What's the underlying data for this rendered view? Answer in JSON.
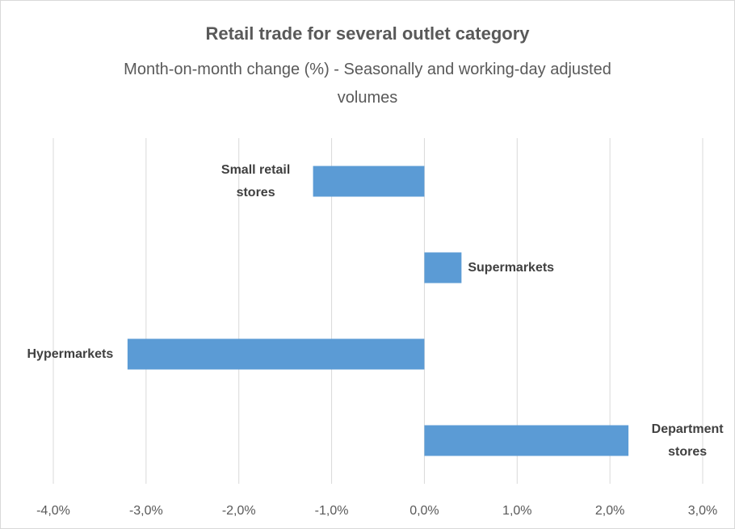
{
  "chart_data": {
    "type": "barh",
    "title": "Retail trade for several outlet category",
    "subtitle": "Month-on-month change (%) - Seasonally and working-day adjusted volumes",
    "categories": [
      "Small retail stores",
      "Supermarkets",
      "Hypermarkets",
      "Department stores"
    ],
    "values": [
      -1.2,
      0.4,
      -3.2,
      2.2
    ],
    "color": "#5b9bd5",
    "xlim": [
      -4,
      3
    ],
    "xticks": [
      {
        "value": -4,
        "label": "-4,0%"
      },
      {
        "value": -3,
        "label": "-3,0%"
      },
      {
        "value": -2,
        "label": "-2,0%"
      },
      {
        "value": -1,
        "label": "-1,0%"
      },
      {
        "value": 0,
        "label": "0,0%"
      },
      {
        "value": 1,
        "label": "1,0%"
      },
      {
        "value": 2,
        "label": "2,0%"
      },
      {
        "value": 3,
        "label": "3,0%"
      }
    ],
    "grid": true
  }
}
